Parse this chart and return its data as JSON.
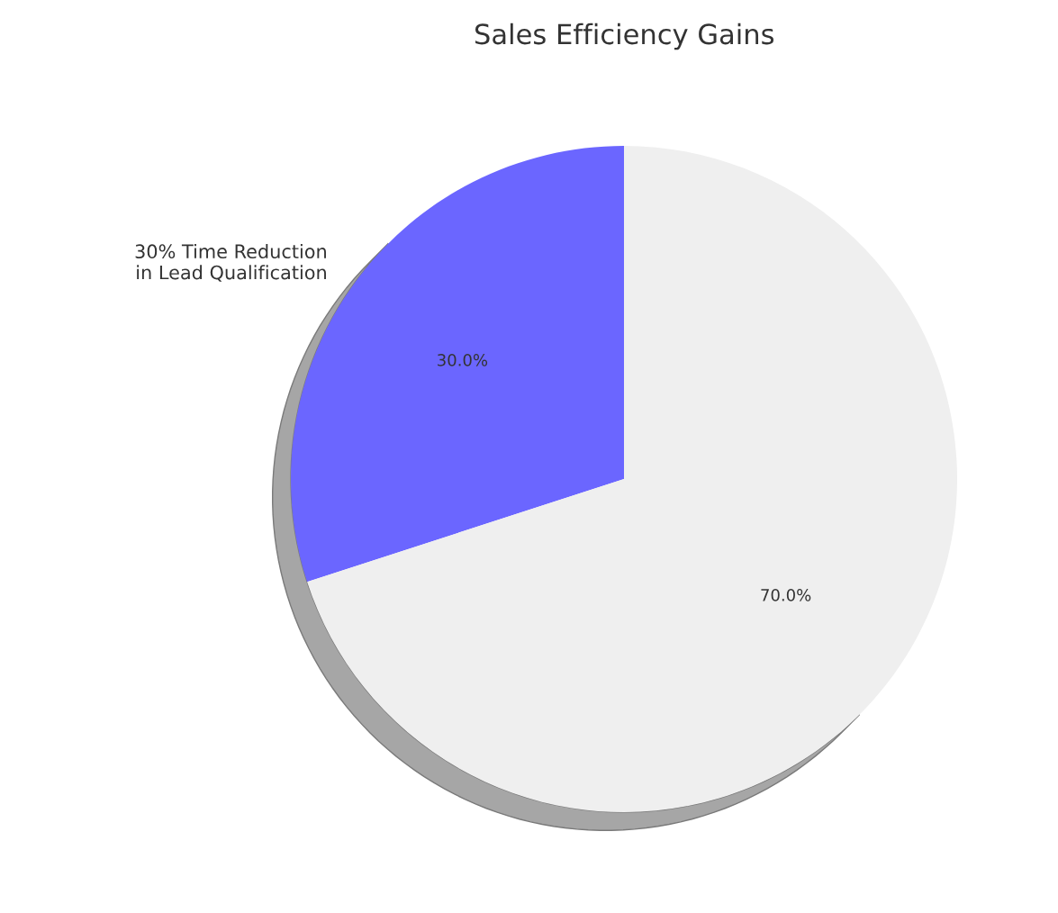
{
  "chart_data": {
    "type": "pie",
    "title": "Sales Efficiency Gains",
    "categories": [
      "30% Time Reduction\nin Lead Qualification",
      null
    ],
    "values": [
      30,
      70
    ],
    "colors": [
      "#6b66ff",
      "#efefef"
    ],
    "value_labels": [
      "30.0%",
      "70.0%"
    ]
  }
}
